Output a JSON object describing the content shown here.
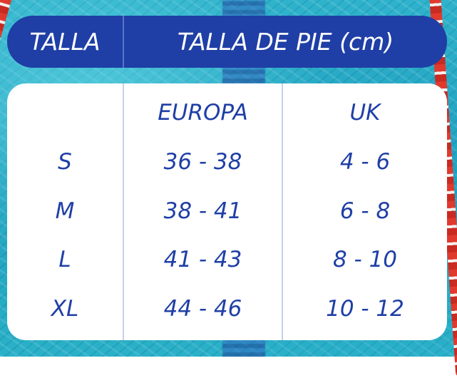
{
  "header": {
    "col_size": "TALLA",
    "col_foot": "TALLA DE PIE (cm)"
  },
  "subheader": {
    "europe": "EUROPA",
    "uk": "UK"
  },
  "rows": [
    {
      "size": "S",
      "eu": "36 - 38",
      "uk": "4 - 6"
    },
    {
      "size": "M",
      "eu": "38 - 41",
      "uk": "6 - 8"
    },
    {
      "size": "L",
      "eu": "41 - 43",
      "uk": "8 - 10"
    },
    {
      "size": "XL",
      "eu": "44 - 46",
      "uk": "10 - 12"
    }
  ],
  "colors": {
    "brand_blue": "#1f3fa6",
    "card_bg": "#ffffff",
    "pool": "#2fb3cc"
  }
}
